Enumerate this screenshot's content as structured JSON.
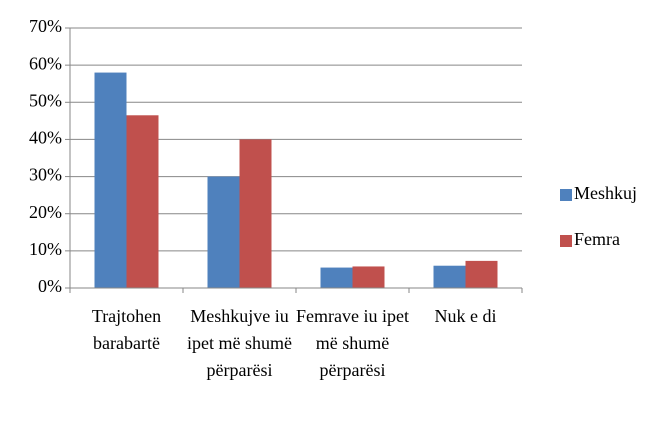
{
  "chart_data": {
    "type": "bar",
    "categories": [
      "Trajtohen barabartë",
      "Meshkujve iu ipet më shumë përparësi",
      "Femrave iu ipet më shumë përparësi",
      "Nuk e di"
    ],
    "series": [
      {
        "name": "Meshkuj",
        "color": "#4f81bd",
        "values": [
          58,
          30,
          5.5,
          6
        ]
      },
      {
        "name": "Femra",
        "color": "#c0504d",
        "values": [
          46.5,
          40,
          5.8,
          7.3
        ]
      }
    ],
    "ylim": [
      0,
      70
    ],
    "yticks": [
      {
        "value": 0,
        "label": "0%"
      },
      {
        "value": 10,
        "label": "10%"
      },
      {
        "value": 20,
        "label": "20%"
      },
      {
        "value": 30,
        "label": "30%"
      },
      {
        "value": 40,
        "label": "40%"
      },
      {
        "value": 50,
        "label": "50%"
      },
      {
        "value": 60,
        "label": "60%"
      },
      {
        "value": 70,
        "label": "70%"
      }
    ],
    "grid": true,
    "legend": "right"
  }
}
